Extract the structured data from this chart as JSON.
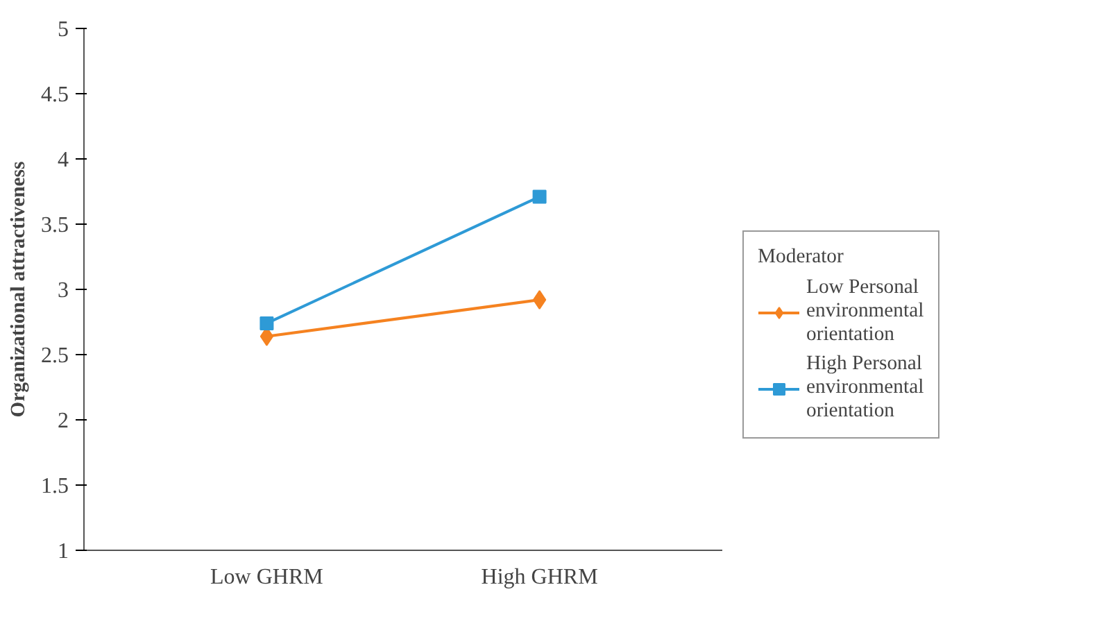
{
  "chart_data": {
    "type": "line",
    "ylabel": "Organizational attractiveness",
    "legend_title": "Moderator",
    "categories": [
      "Low GHRM",
      "High GHRM"
    ],
    "series": [
      {
        "name": "Low Personal environmental orientation",
        "color": "#f58220",
        "values": [
          2.64,
          2.92
        ],
        "marker": "diamond"
      },
      {
        "name": "High Personal environmental orientation",
        "color": "#2e9ad6",
        "values": [
          2.74,
          3.71
        ],
        "marker": "square"
      }
    ],
    "ylim": [
      1,
      5
    ],
    "yticks": [
      1,
      1.5,
      2,
      2.5,
      3,
      3.5,
      4,
      4.5,
      5
    ],
    "grid": false,
    "legend": "right",
    "line_style": "solid"
  }
}
